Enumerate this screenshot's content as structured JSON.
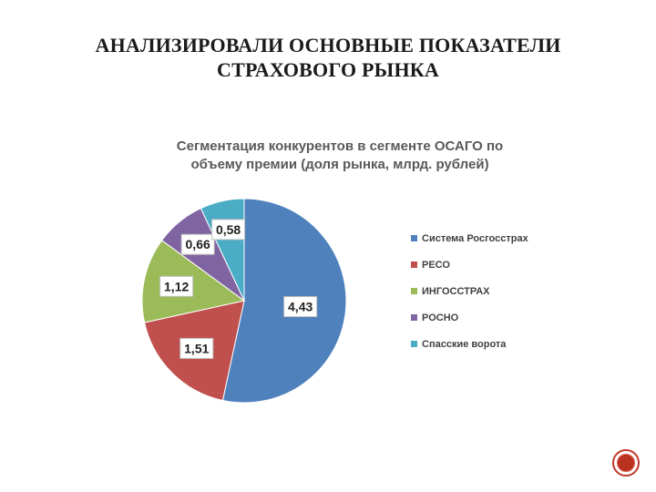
{
  "slide": {
    "title_line1": "АНАЛИЗИРОВАЛИ ОСНОВНЫЕ ПОКАЗАТЕЛИ",
    "title_line2": "СТРАХОВОГО РЫНКА"
  },
  "chart_data": {
    "type": "pie",
    "title_lines": [
      "Сегментация конкурентов в сегменте ОСАГО по",
      "объему премии (доля рынка, млрд. рублей)"
    ],
    "categories": [
      "Система Росгосстрах",
      "РЕСО",
      "ИНГОССТРАХ",
      "РОСНО",
      "Спасские ворота"
    ],
    "values": [
      4.43,
      1.51,
      1.12,
      0.66,
      0.58
    ],
    "value_labels": [
      "4,43",
      "1,51",
      "1,12",
      "0,66",
      "0,58"
    ],
    "colors": [
      "#4f81bd",
      "#c0504d",
      "#9bbb59",
      "#8064a2",
      "#4bacc6"
    ],
    "legend_position": "right"
  },
  "icons": {
    "nav": "circle-button-icon"
  }
}
